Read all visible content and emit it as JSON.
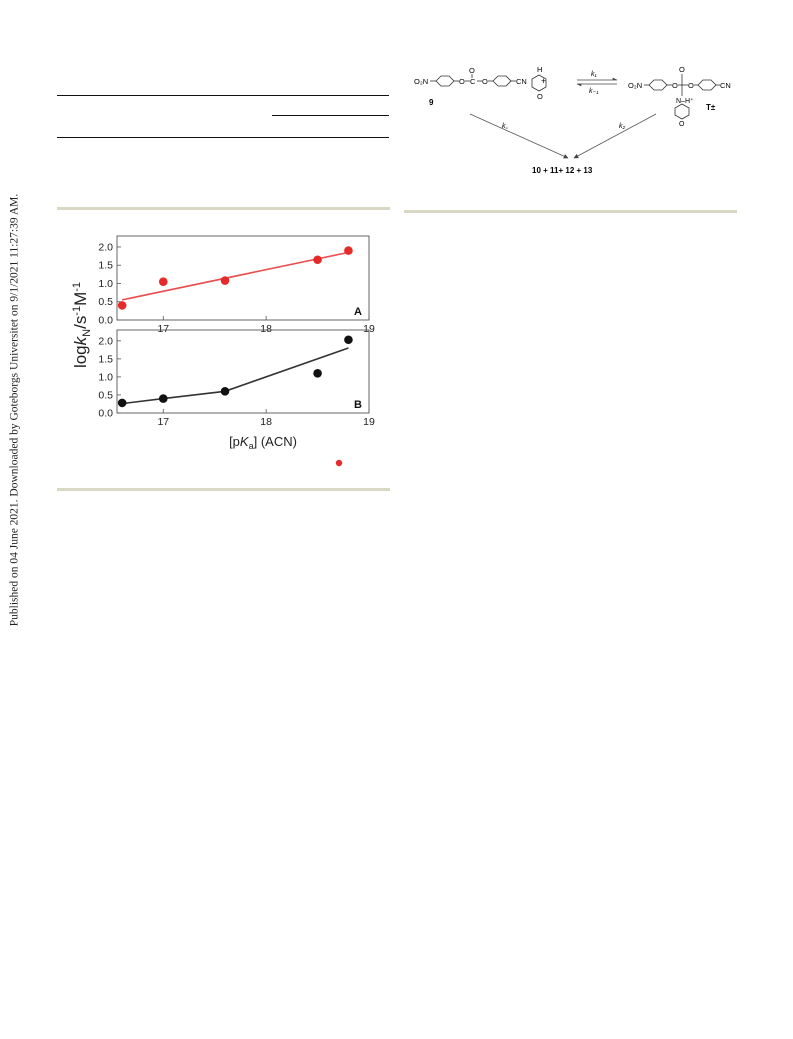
{
  "sidebar": {
    "text": "Published on 04 June 2021. Downloaded by Goteborgs Universitet on 9/1/2021 11:27:39 AM."
  },
  "scheme": {
    "reactant_left": "O₂N",
    "reactant_right": "CN",
    "carbonyl_o": "O",
    "carbonyl_c": "C",
    "amine_n": "N",
    "amine_h": "H",
    "amine_o": "O",
    "plus": "+",
    "k1": "k₁",
    "k_minus1": "k₋₁",
    "compound_label": "9",
    "intermediate_left": "O₂N",
    "intermediate_right": "CN",
    "intermediate_nh": "N–H⁺",
    "intermediate_label": "T±",
    "kc": "k꜀",
    "k2": "k₂",
    "products": "10 + 11+ 12 + 13"
  },
  "chart": {
    "ylabel_main": "log",
    "ylabel_k": "k",
    "ylabel_sub": "N",
    "ylabel_rest": "/s",
    "ylabel_sup1": "-1",
    "ylabel_m": "M",
    "ylabel_sup2": "-1",
    "xlabel_open": "[p",
    "xlabel_k": "K",
    "xlabel_sub": "a",
    "xlabel_close": "] (ACN)"
  },
  "chart_data": {
    "type": "scatter",
    "xlim": [
      16.55,
      19.0
    ],
    "x_ticks": [
      17,
      18,
      19
    ],
    "x_tick_labels": [
      "17",
      "18",
      "19"
    ],
    "panels": [
      {
        "panel_label": "A",
        "ylim": [
          0.0,
          2.3
        ],
        "y_ticks": [
          0.0,
          0.5,
          1.0,
          1.5,
          2.0
        ],
        "y_tick_labels": [
          "0.0",
          "0.5",
          "1.0",
          "1.5",
          "2.0"
        ],
        "point_color": "#e52a2a",
        "line_color": "#e85050",
        "points": [
          {
            "x": 16.6,
            "y": 0.4
          },
          {
            "x": 17.0,
            "y": 1.05
          },
          {
            "x": 17.6,
            "y": 1.08
          },
          {
            "x": 18.5,
            "y": 1.65
          },
          {
            "x": 18.8,
            "y": 1.9
          }
        ],
        "fit": [
          {
            "x": 16.6,
            "y": 0.55
          },
          {
            "x": 18.8,
            "y": 1.85
          }
        ]
      },
      {
        "panel_label": "B",
        "ylim": [
          0.0,
          2.3
        ],
        "y_ticks": [
          0.0,
          0.5,
          1.0,
          1.5,
          2.0
        ],
        "y_tick_labels": [
          "0.0",
          "0.5",
          "1.0",
          "1.5",
          "2.0"
        ],
        "point_color": "#111111",
        "line_color": "#333333",
        "points": [
          {
            "x": 16.6,
            "y": 0.28
          },
          {
            "x": 17.0,
            "y": 0.4
          },
          {
            "x": 17.6,
            "y": 0.6
          },
          {
            "x": 18.5,
            "y": 1.1
          },
          {
            "x": 18.8,
            "y": 2.03
          }
        ],
        "fit": [
          {
            "x": 16.6,
            "y": 0.26
          },
          {
            "x": 17.0,
            "y": 0.4
          },
          {
            "x": 17.6,
            "y": 0.6
          },
          {
            "x": 18.8,
            "y": 1.8
          }
        ]
      }
    ]
  },
  "legend_marker_color": "#e52a2a"
}
